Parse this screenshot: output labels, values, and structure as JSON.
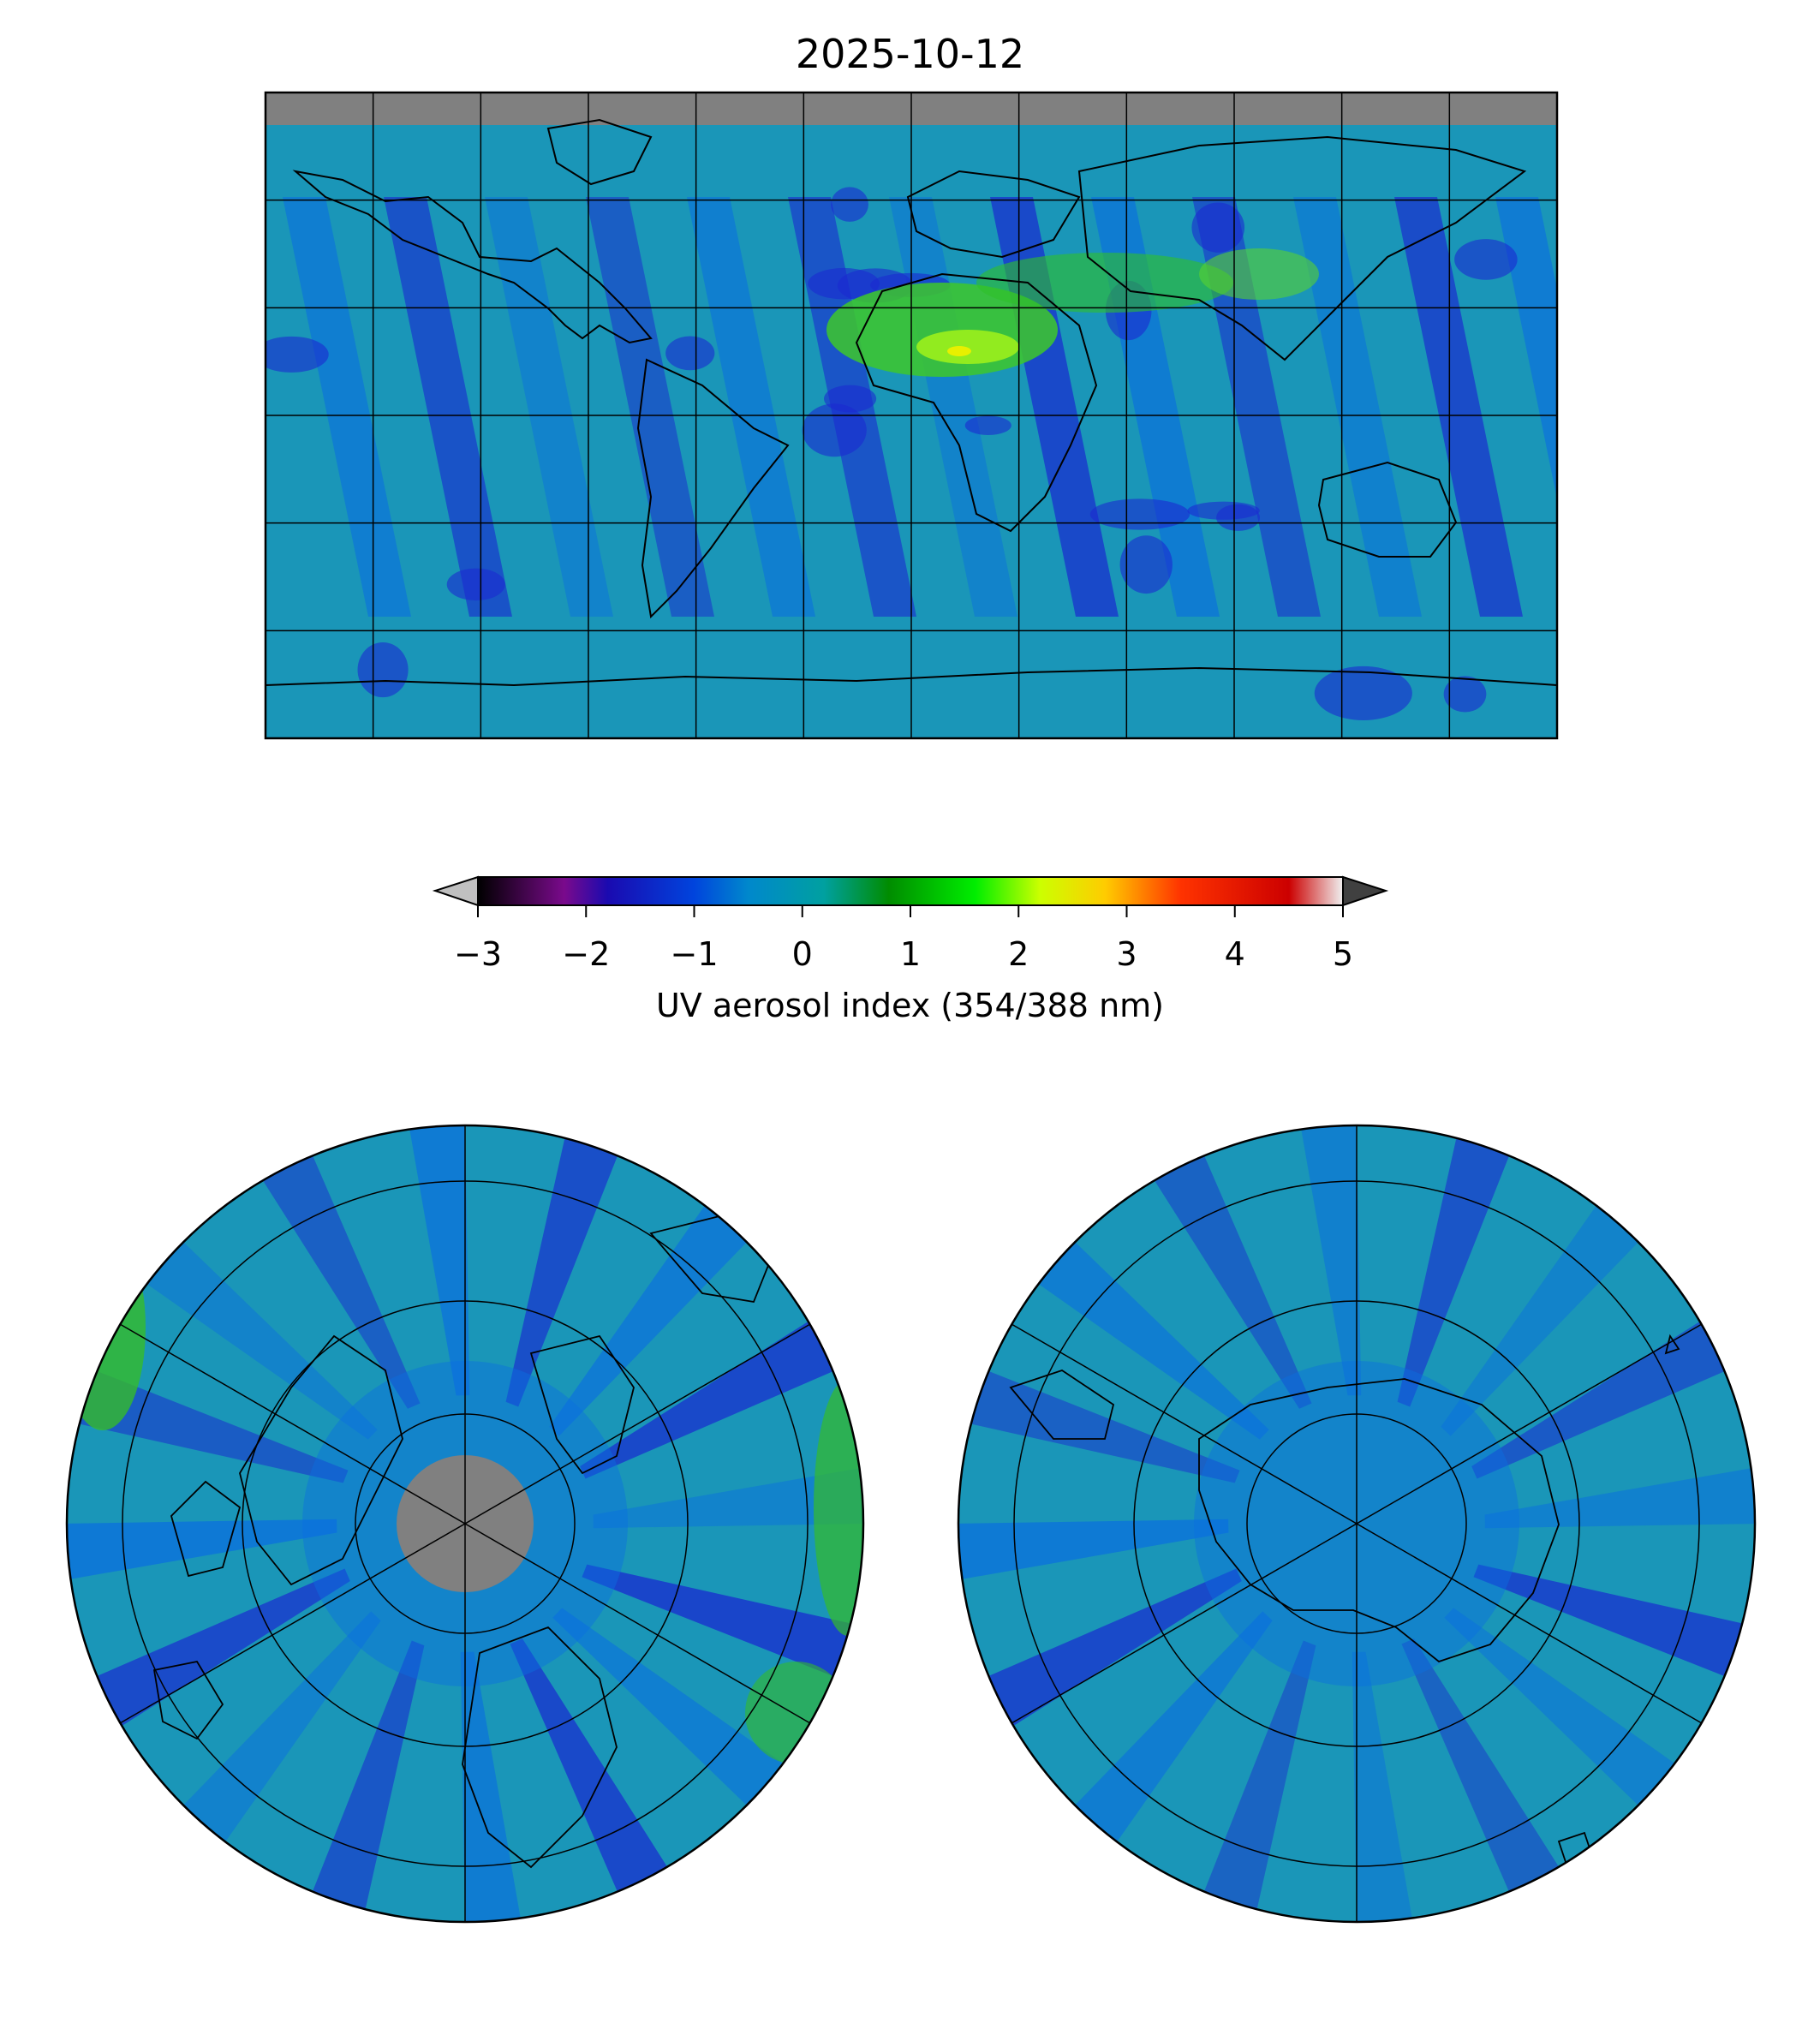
{
  "title": "2025-10-12",
  "colorbar": {
    "label": "UV aerosol index (354/388 nm)",
    "ticks": [
      {
        "value": -3,
        "label": "−3"
      },
      {
        "value": -2,
        "label": "−2"
      },
      {
        "value": -1,
        "label": "−1"
      },
      {
        "value": 0,
        "label": "0"
      },
      {
        "value": 1,
        "label": "1"
      },
      {
        "value": 2,
        "label": "2"
      },
      {
        "value": 3,
        "label": "3"
      },
      {
        "value": 4,
        "label": "4"
      },
      {
        "value": 5,
        "label": "5"
      }
    ],
    "range": [
      -3,
      5
    ],
    "extend": "both",
    "under_color": "#c0c0c0",
    "over_color": "#404040",
    "stops": [
      {
        "value": -3.0,
        "color": "#000000"
      },
      {
        "value": -2.2,
        "color": "#7a0a8c"
      },
      {
        "value": -1.8,
        "color": "#1a0ab0"
      },
      {
        "value": -1.0,
        "color": "#0044dd"
      },
      {
        "value": -0.5,
        "color": "#0088cc"
      },
      {
        "value": 0.2,
        "color": "#00a0a0"
      },
      {
        "value": 0.8,
        "color": "#008c00"
      },
      {
        "value": 1.6,
        "color": "#00ee00"
      },
      {
        "value": 2.2,
        "color": "#ccff00"
      },
      {
        "value": 2.8,
        "color": "#ffcc00"
      },
      {
        "value": 3.5,
        "color": "#ff3300"
      },
      {
        "value": 4.5,
        "color": "#cc0000"
      },
      {
        "value": 5.0,
        "color": "#f0f0f0"
      }
    ]
  },
  "maps": {
    "global": {
      "projection": "equirectangular",
      "gridlines": true,
      "missing_color": "#808080",
      "background": "#1a9ab0"
    },
    "north_polar": {
      "projection": "north polar stereographic",
      "gridlines": true,
      "missing_color": "#808080"
    },
    "south_polar": {
      "projection": "south polar stereographic",
      "gridlines": true
    }
  },
  "colors": {
    "ocean_base": "#1a96b8",
    "swath_low": "#1a2ad0",
    "swath_mid": "#0a6ee0",
    "dust_high": "#4ccd2a",
    "dust_peak": "#d8f000",
    "coastline": "#000000"
  }
}
